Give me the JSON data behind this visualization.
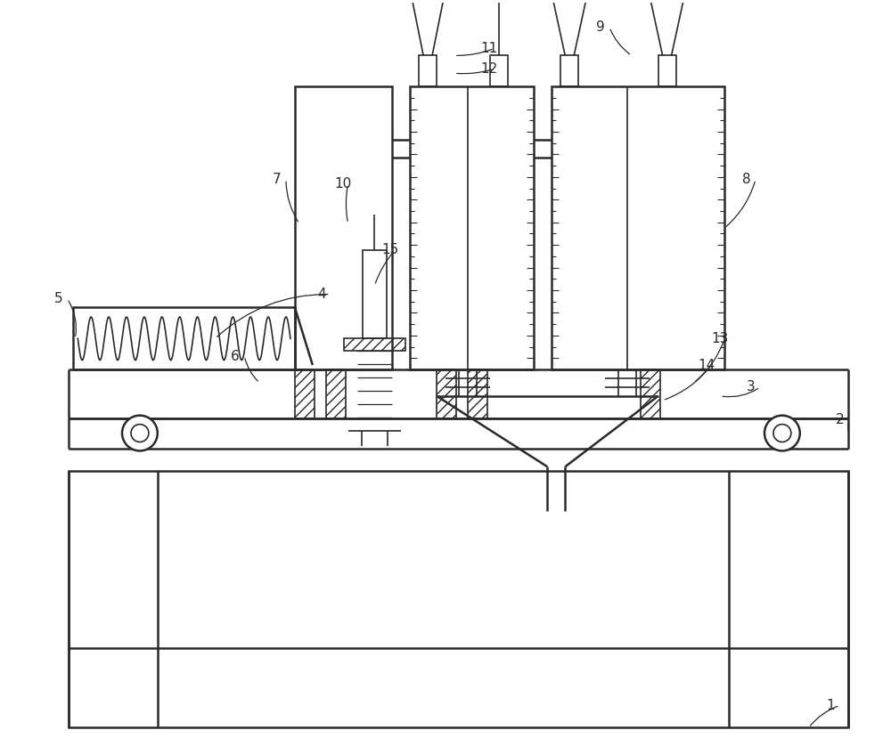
{
  "bg_color": "#ffffff",
  "line_color": "#2a2a2a",
  "fig_width": 10.0,
  "fig_height": 8.38
}
